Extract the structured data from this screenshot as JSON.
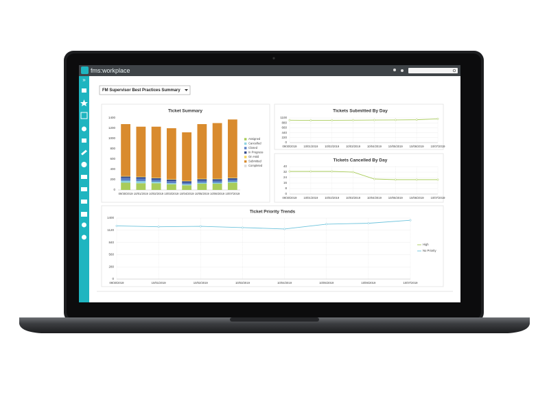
{
  "app": {
    "logo": "fms:workplace",
    "report_select": "FM Supervisor Best Practices Summary"
  },
  "chart_data": [
    {
      "type": "stacked-bar",
      "title": "Ticket Summary",
      "categories": [
        "09/30/2019",
        "10/01/2019",
        "10/02/2019",
        "10/03/2019",
        "10/04/2019",
        "10/05/2019",
        "10/06/2019",
        "10/07/2019"
      ],
      "series": [
        {
          "name": "Assigned",
          "color": "#a9cc5a",
          "values": [
            140,
            130,
            130,
            110,
            90,
            120,
            120,
            140
          ]
        },
        {
          "name": "Cancelled",
          "color": "#8fd3e0",
          "values": [
            40,
            40,
            30,
            20,
            20,
            20,
            20,
            20
          ]
        },
        {
          "name": "Closed",
          "color": "#5b7fc4",
          "values": [
            50,
            50,
            40,
            40,
            30,
            40,
            40,
            40
          ]
        },
        {
          "name": "In Progress",
          "color": "#3a4f8f",
          "values": [
            30,
            30,
            30,
            30,
            30,
            30,
            30,
            30
          ]
        },
        {
          "name": "On Hold",
          "color": "#f2d45c",
          "values": [
            10,
            10,
            10,
            10,
            10,
            10,
            10,
            10
          ]
        },
        {
          "name": "Submitted",
          "color": "#d98b2e",
          "values": [
            1010,
            970,
            990,
            990,
            940,
            1060,
            1080,
            1130
          ]
        },
        {
          "name": "Completed",
          "color": "#d9d9d9",
          "values": [
            0,
            0,
            0,
            0,
            0,
            0,
            0,
            0
          ]
        }
      ],
      "ylim": [
        0,
        1400
      ],
      "yticks": [
        0,
        200,
        400,
        600,
        800,
        1000,
        1200,
        1400
      ],
      "grid": false
    },
    {
      "type": "line",
      "title": "Tickets Submitted By Day",
      "categories": [
        "09/30/2019",
        "10/01/2019",
        "10/02/2019",
        "10/03/2019",
        "10/04/2019",
        "10/05/2019",
        "10/06/2019",
        "10/07/2019"
      ],
      "series": [
        {
          "name": "Submitted",
          "color": "#a9cc5a",
          "values": [
            1000,
            990,
            995,
            1000,
            1005,
            1010,
            1020,
            1060
          ]
        }
      ],
      "ylim": [
        0,
        1100
      ],
      "yticks": [
        0,
        220,
        440,
        660,
        880,
        1100
      ],
      "grid": true,
      "legend": false
    },
    {
      "type": "line",
      "title": "Tickets Cancelled By Day",
      "categories": [
        "09/30/2019",
        "10/01/2019",
        "10/02/2019",
        "10/03/2019",
        "10/04/2019",
        "10/05/2019",
        "10/06/2019",
        "10/07/2019"
      ],
      "series": [
        {
          "name": "Cancelled",
          "color": "#a9cc5a",
          "values": [
            33,
            33,
            33,
            32,
            22,
            21,
            21,
            21
          ]
        }
      ],
      "ylim": [
        0,
        40
      ],
      "yticks": [
        0,
        8,
        16,
        24,
        32,
        40
      ],
      "grid": true,
      "legend": false
    },
    {
      "type": "line",
      "title": "Ticket Priority Trends",
      "categories": [
        "09/30/2019",
        "10/01/2019",
        "10/02/2019",
        "10/03/2019",
        "10/04/2019",
        "10/05/2019",
        "10/06/2019",
        "10/07/2019"
      ],
      "series": [
        {
          "name": "High",
          "color": "#a9cc5a",
          "values": [
            null,
            null,
            null,
            null,
            null,
            null,
            null,
            null
          ]
        },
        {
          "name": "No Priority",
          "color": "#6cc3dc",
          "values": [
            1220,
            1200,
            1210,
            1180,
            1150,
            1260,
            1280,
            1350
          ]
        }
      ],
      "ylim": [
        0,
        1400
      ],
      "yticks": [
        0,
        280,
        560,
        840,
        1120,
        1400
      ],
      "grid": true,
      "legend": true
    }
  ]
}
